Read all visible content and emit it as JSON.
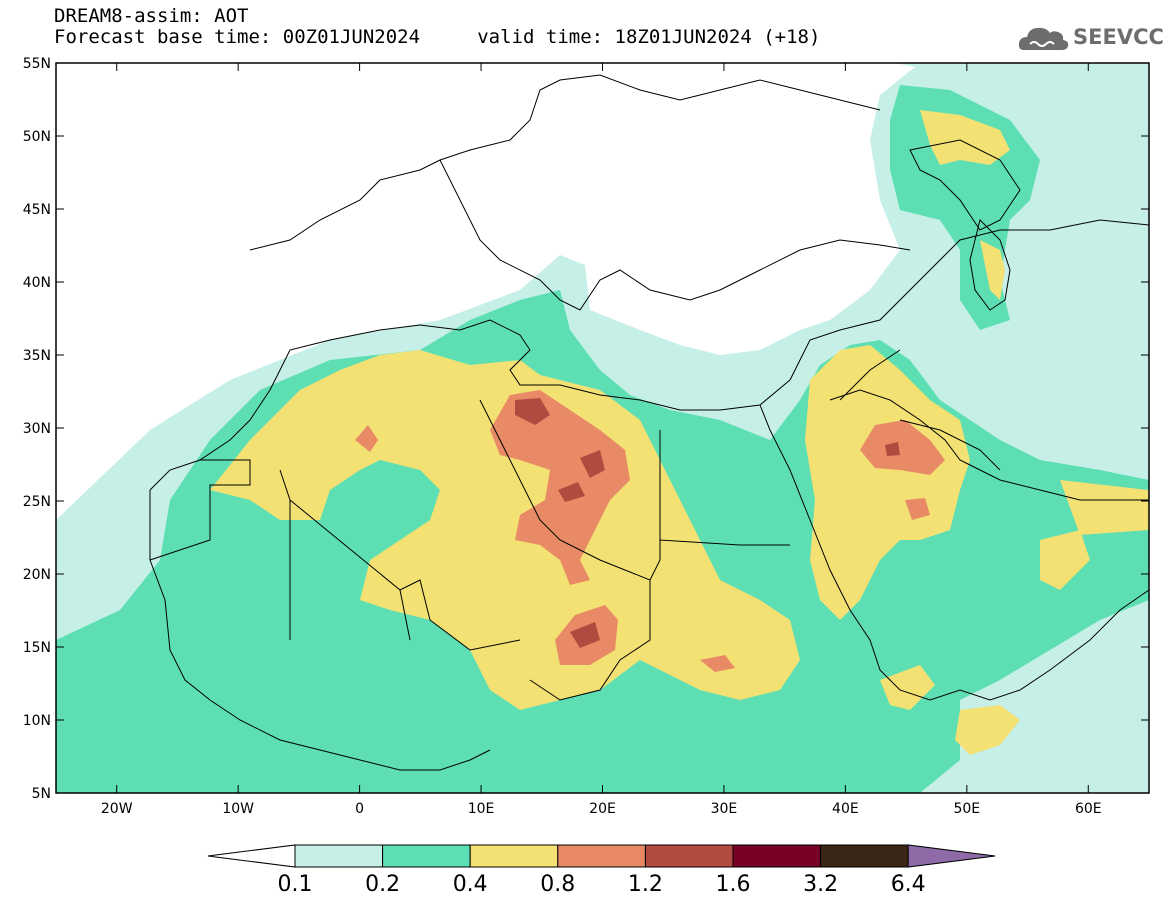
{
  "header": {
    "title": "DREAM8-assim: AOT",
    "line2": "Forecast base time: 00Z01JUN2024     valid time: 18Z01JUN2024 (+18)",
    "logo": "SEEVCCC",
    "logo_icon": "cloud-icon"
  },
  "map": {
    "projection": "lat-lon",
    "lon_range": [
      -25,
      65
    ],
    "lat_range": [
      5,
      55
    ],
    "lat_labels": [
      "55N",
      "50N",
      "45N",
      "40N",
      "35N",
      "30N",
      "25N",
      "20N",
      "15N",
      "10N",
      "5N"
    ],
    "lat_values": [
      55,
      50,
      45,
      40,
      35,
      30,
      25,
      20,
      15,
      10,
      5
    ],
    "lon_labels": [
      "20W",
      "10W",
      "0",
      "10E",
      "20E",
      "30E",
      "40E",
      "50E",
      "60E"
    ],
    "lon_values": [
      -20,
      -10,
      0,
      10,
      20,
      30,
      40,
      50,
      60
    ],
    "field": "AOT"
  },
  "colorbar": {
    "ticks": [
      "0.1",
      "0.2",
      "0.4",
      "0.8",
      "1.2",
      "1.6",
      "3.2",
      "6.4"
    ],
    "colors": [
      "#ffffff",
      "#c6f0e7",
      "#5ddfb3",
      "#f3e173",
      "#e88a65",
      "#b14a3f",
      "#7a0126",
      "#3a2617",
      "#8e6aa6"
    ]
  }
}
